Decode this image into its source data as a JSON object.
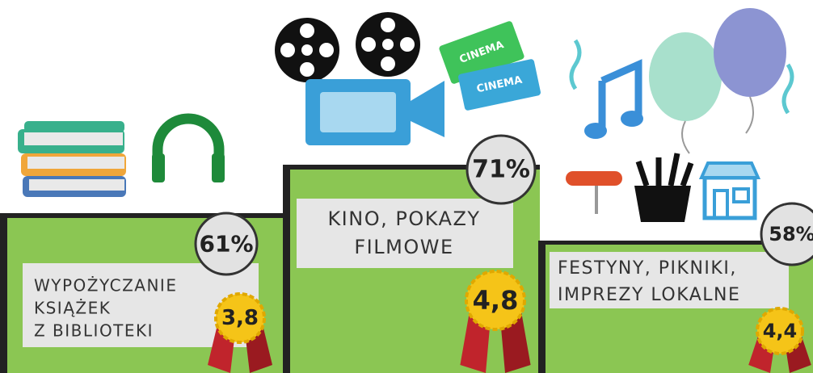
{
  "items": [
    {
      "label_lines": [
        "WYPOŻYCZANIE",
        "KSIĄŻEK",
        "Z BIBLIOTEKI"
      ],
      "percent": "61%",
      "rating": "3,8"
    },
    {
      "label_lines": [
        "KINO, POKAZY",
        "FILMOWE"
      ],
      "percent": "71%",
      "rating": "4,8"
    },
    {
      "label_lines": [
        "FESTYNY, PIKNIKI,",
        "IMPREZY LOKALNE"
      ],
      "percent": "58%",
      "rating": "4,4"
    }
  ],
  "tickets": [
    "CINEMA",
    "CINEMA"
  ]
}
